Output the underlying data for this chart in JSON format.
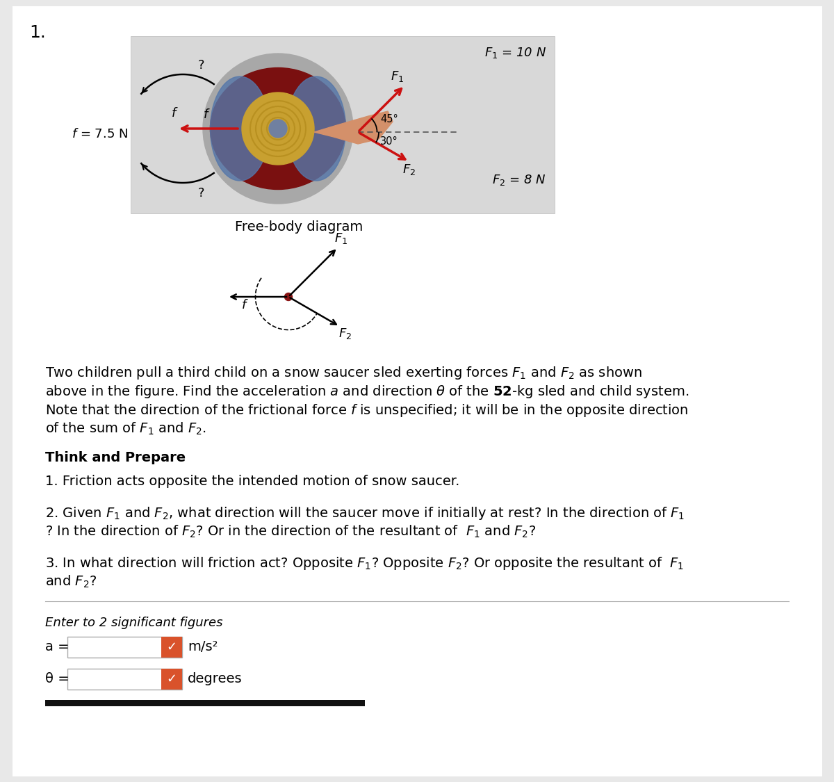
{
  "bg_color": "#e8e8e8",
  "white": "#ffffff",
  "number_label": "1.",
  "think_prepare": "Think and Prepare",
  "enter_label": "Enter to 2 significant figures",
  "a_label": "a =",
  "theta_label": "θ =",
  "a_unit": "m/s²",
  "theta_unit": "degrees",
  "checkmark_color": "#d9522b",
  "divider_color": "#aaaaaa",
  "bottom_bar_color": "#111111",
  "sled_box_bg": "#d8d8d8",
  "sled_body_color": "#7a1010",
  "sled_blue": "#5577aa",
  "sled_gold": "#c8a030",
  "sled_gray_outer": "#a8a8a8",
  "sled_rope": "#d4906a",
  "arrow_red": "#cc1111",
  "arrow_black": "#111111"
}
